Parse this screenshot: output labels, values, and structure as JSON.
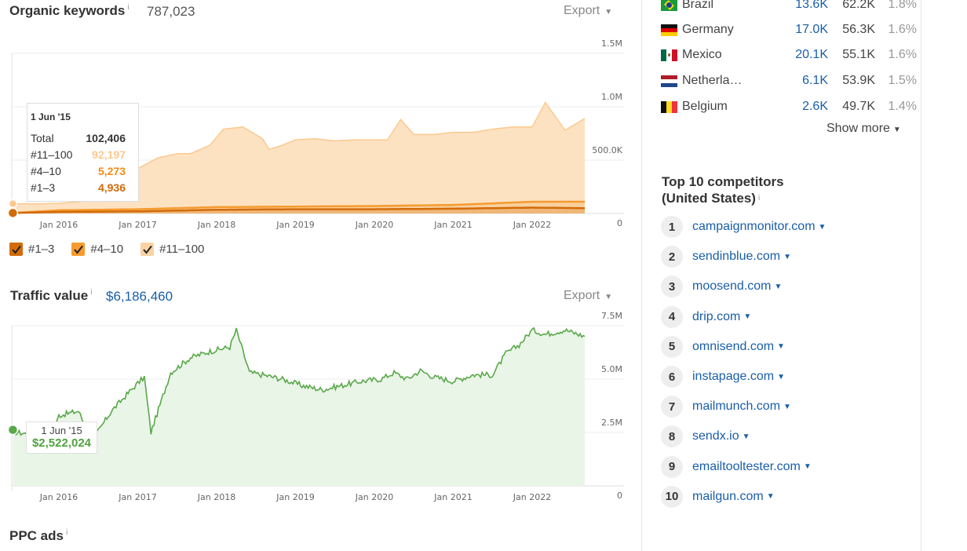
{
  "organic": {
    "title": "Organic keywords",
    "info": "i",
    "value": "787,023",
    "export_label": "Export",
    "y_ticks": [
      "1.5M",
      "1.0M",
      "500.0K",
      "0"
    ],
    "x_ticks": [
      "Jan 2016",
      "Jan 2017",
      "Jan 2018",
      "Jan 2019",
      "Jan 2020",
      "Jan 2021",
      "Jan 2022"
    ],
    "tooltip": {
      "date": "1 Jun '15",
      "rows": [
        {
          "label": "Total",
          "value": "102,406"
        },
        {
          "label": "#11–100",
          "value": "92,197"
        },
        {
          "label": "#4–10",
          "value": "5,273"
        },
        {
          "label": "#1–3",
          "value": "4,936"
        }
      ]
    },
    "legend": [
      {
        "label": "#1–3",
        "color": "#d26b0a"
      },
      {
        "label": "#4–10",
        "color": "#f59b30"
      },
      {
        "label": "#11–100",
        "color": "#fbd3a3"
      }
    ]
  },
  "traffic_value": {
    "title": "Traffic value",
    "info": "i",
    "value": "$6,186,460",
    "export_label": "Export",
    "y_ticks": [
      "7.5M",
      "5.0M",
      "2.5M",
      "0"
    ],
    "x_ticks": [
      "Jan 2016",
      "Jan 2017",
      "Jan 2018",
      "Jan 2019",
      "Jan 2020",
      "Jan 2021",
      "Jan 2022"
    ],
    "tooltip": {
      "date": "1 Jun '15",
      "value": "$2,522,024"
    }
  },
  "ppc": {
    "title": "PPC ads",
    "info": "i"
  },
  "countries": [
    {
      "name": "Brazil",
      "keywords": "13.6K",
      "traffic": "62.2K",
      "pct": "1.8%",
      "flag": "brazil"
    },
    {
      "name": "Germany",
      "keywords": "17.0K",
      "traffic": "56.3K",
      "pct": "1.6%",
      "flag": "germany"
    },
    {
      "name": "Mexico",
      "keywords": "20.1K",
      "traffic": "55.1K",
      "pct": "1.6%",
      "flag": "mexico"
    },
    {
      "name": "Netherla…",
      "keywords": "6.1K",
      "traffic": "53.9K",
      "pct": "1.5%",
      "flag": "netherlands"
    },
    {
      "name": "Belgium",
      "keywords": "2.6K",
      "traffic": "49.7K",
      "pct": "1.4%",
      "flag": "belgium"
    }
  ],
  "show_more": "Show more",
  "competitors": {
    "title_line1": "Top 10 competitors",
    "title_line2": "(United States)",
    "info": "i",
    "items": [
      {
        "rank": "1",
        "domain": "campaignmonitor.com"
      },
      {
        "rank": "2",
        "domain": "sendinblue.com"
      },
      {
        "rank": "3",
        "domain": "moosend.com"
      },
      {
        "rank": "4",
        "domain": "drip.com"
      },
      {
        "rank": "5",
        "domain": "omnisend.com"
      },
      {
        "rank": "6",
        "domain": "instapage.com"
      },
      {
        "rank": "7",
        "domain": "mailmunch.com"
      },
      {
        "rank": "8",
        "domain": "sendx.io"
      },
      {
        "rank": "9",
        "domain": "emailtooltester.com"
      },
      {
        "rank": "10",
        "domain": "mailgun.com"
      }
    ]
  },
  "chart_data": [
    {
      "type": "area",
      "series": [
        {
          "name": "#11–100",
          "color": "#fbd3a3",
          "x": [
            "2015-06",
            "2015-09",
            "2016-01",
            "2016-04",
            "2016-07",
            "2016-10",
            "2017-01",
            "2017-04",
            "2017-07",
            "2017-09",
            "2017-12",
            "2018-02",
            "2018-05",
            "2018-08",
            "2018-09",
            "2018-11",
            "2019-01",
            "2019-04",
            "2019-07",
            "2019-10",
            "2020-01",
            "2020-03",
            "2020-05",
            "2020-07",
            "2020-10",
            "2021-01",
            "2021-04",
            "2021-07",
            "2021-10",
            "2022-01",
            "2022-03",
            "2022-06",
            "2022-09"
          ],
          "y": [
            92197,
            90000,
            95000,
            110000,
            150000,
            260000,
            420000,
            520000,
            560000,
            560000,
            640000,
            790000,
            810000,
            700000,
            600000,
            640000,
            690000,
            700000,
            680000,
            690000,
            690000,
            690000,
            880000,
            740000,
            740000,
            760000,
            760000,
            790000,
            810000,
            810000,
            1040000,
            780000,
            890000
          ]
        },
        {
          "name": "#4–10",
          "color": "#f59b30",
          "x": [
            "2015-06",
            "2016-01",
            "2017-01",
            "2018-01",
            "2019-01",
            "2020-01",
            "2021-01",
            "2022-01",
            "2022-09"
          ],
          "y": [
            5273,
            30000,
            40000,
            60000,
            65000,
            70000,
            80000,
            110000,
            110000
          ]
        },
        {
          "name": "#1–3",
          "color": "#d26b0a",
          "x": [
            "2015-06",
            "2016-01",
            "2017-01",
            "2018-01",
            "2019-01",
            "2020-01",
            "2021-01",
            "2022-01",
            "2022-09"
          ],
          "y": [
            4936,
            15000,
            20000,
            35000,
            40000,
            40000,
            45000,
            55000,
            50000
          ]
        }
      ],
      "ylim": [
        0,
        1500000
      ],
      "grid": true,
      "legend": "bottom"
    },
    {
      "type": "area",
      "series": [
        {
          "color": "#5aa84a",
          "x": [
            "2015-06",
            "2015-12",
            "2016-01",
            "2016-04",
            "2016-06",
            "2016-09",
            "2016-12",
            "2017-02",
            "2017-03",
            "2017-06",
            "2017-09",
            "2017-12",
            "2018-03",
            "2018-04",
            "2018-06",
            "2018-08",
            "2018-11",
            "2019-02",
            "2019-05",
            "2019-08",
            "2019-11",
            "2020-02",
            "2020-04",
            "2020-06",
            "2020-08",
            "2020-10",
            "2021-01",
            "2021-04",
            "2021-07",
            "2021-09",
            "2021-11",
            "2022-01",
            "2022-03",
            "2022-06",
            "2022-09"
          ],
          "y": [
            2522024,
            2300000,
            3300000,
            3500000,
            2100000,
            3500000,
            4500000,
            5100000,
            2500000,
            5300000,
            6000000,
            6300000,
            6500000,
            7300000,
            5300000,
            5200000,
            5000000,
            4700000,
            4500000,
            4700000,
            4900000,
            5000000,
            5300000,
            5000000,
            5400000,
            5100000,
            4900000,
            5200000,
            5200000,
            6200000,
            6600000,
            7300000,
            7100000,
            7300000,
            7000000
          ]
        }
      ],
      "ylim": [
        0,
        7500000
      ],
      "grid": true
    }
  ]
}
